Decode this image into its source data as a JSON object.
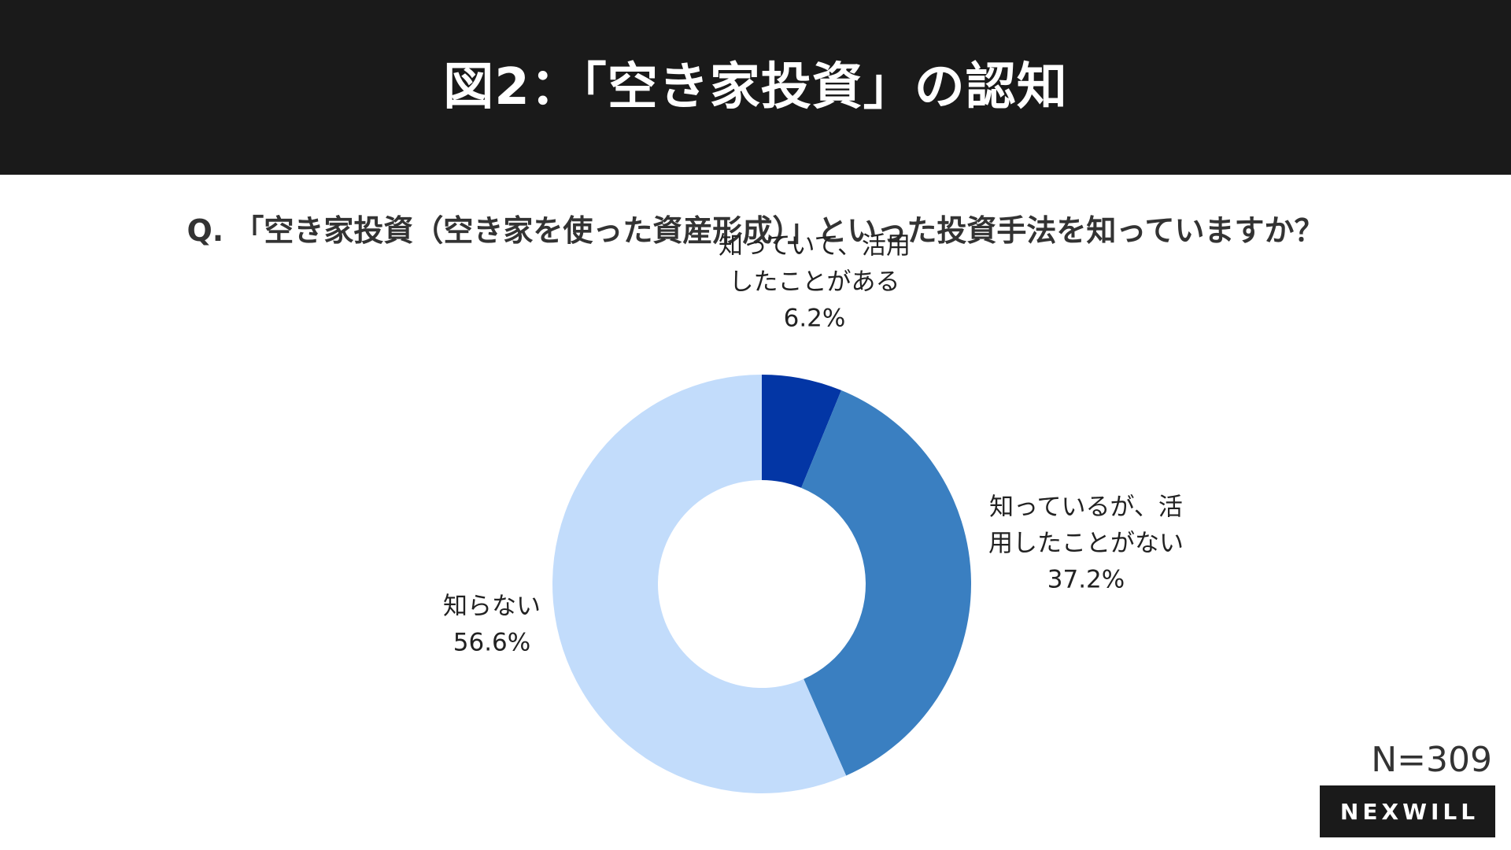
{
  "header": {
    "title": "図2：「空き家投資」の認知"
  },
  "question": "Q. 「空き家投資（空き家を使った資産形成）」といった投資手法を知っていますか？",
  "sample_size": "N=309",
  "brand": "NEXWILL",
  "colors": {
    "header_bg": "#1a1a1a",
    "slice_dark": "#0336a5",
    "slice_mid": "#3a7fc1",
    "slice_light": "#c2dcfb"
  },
  "chart_data": {
    "type": "pie",
    "style": "donut",
    "title": "図2：「空き家投資」の認知",
    "start_angle": "12 o'clock",
    "direction": "clockwise",
    "slices": [
      {
        "label_lines": [
          "知っていて、活用",
          "したことがある"
        ],
        "label": "知っていて、活用したことがある",
        "value": 6.2,
        "value_text": "6.2%",
        "color": "#0336a5"
      },
      {
        "label_lines": [
          "知っているが、活",
          "用したことがない"
        ],
        "label": "知っているが、活用したことがない",
        "value": 37.2,
        "value_text": "37.2%",
        "color": "#3a7fc1"
      },
      {
        "label_lines": [
          "知らない"
        ],
        "label": "知らない",
        "value": 56.6,
        "value_text": "56.6%",
        "color": "#c2dcfb"
      }
    ]
  }
}
